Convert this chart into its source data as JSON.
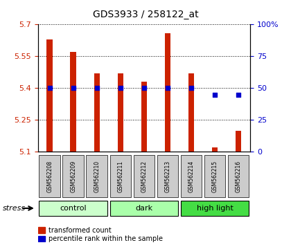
{
  "title": "GDS3933 / 258122_at",
  "samples": [
    "GSM562208",
    "GSM562209",
    "GSM562210",
    "GSM562211",
    "GSM562212",
    "GSM562213",
    "GSM562214",
    "GSM562215",
    "GSM562216"
  ],
  "transformed_count": [
    5.63,
    5.57,
    5.47,
    5.47,
    5.43,
    5.66,
    5.47,
    5.12,
    5.2
  ],
  "percentile_rank": [
    50,
    50,
    50,
    50,
    50,
    50,
    50,
    45,
    45
  ],
  "ylim_left": [
    5.1,
    5.7
  ],
  "ylim_right": [
    0,
    100
  ],
  "yticks_left": [
    5.1,
    5.25,
    5.4,
    5.55,
    5.7
  ],
  "yticks_right": [
    0,
    25,
    50,
    75,
    100
  ],
  "ytick_labels_left": [
    "5.1",
    "5.25",
    "5.4",
    "5.55",
    "5.7"
  ],
  "ytick_labels_right": [
    "0",
    "25",
    "50",
    "75",
    "100%"
  ],
  "bar_color": "#cc2200",
  "dot_color": "#0000cc",
  "grid_color": "#000000",
  "bar_bottom": 5.1,
  "groups": [
    {
      "label": "control",
      "start": 0,
      "end": 3,
      "color": "#ccffcc"
    },
    {
      "label": "dark",
      "start": 3,
      "end": 6,
      "color": "#aaffaa"
    },
    {
      "label": "high light",
      "start": 6,
      "end": 9,
      "color": "#44dd44"
    }
  ],
  "stress_label": "stress",
  "legend_bar_label": "transformed count",
  "legend_dot_label": "percentile rank within the sample",
  "background_color": "#ffffff",
  "plot_bg_color": "#ffffff",
  "sample_box_color": "#cccccc"
}
